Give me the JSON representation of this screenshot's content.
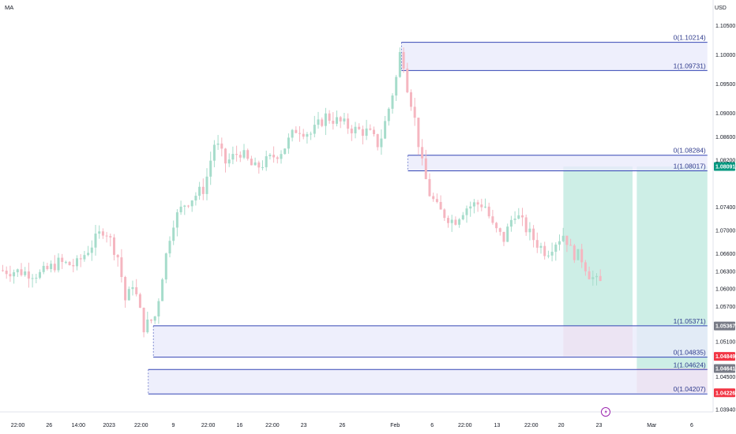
{
  "indicator_label": "MA",
  "chart_data": {
    "type": "candlestick",
    "currency": "USD",
    "ylim": [
      1.0394,
      1.1068
    ],
    "y_ticks": [
      {
        "value": 1.105,
        "label": "1.10500"
      },
      {
        "value": 1.1,
        "label": "1.10000"
      },
      {
        "value": 1.095,
        "label": "1.09500"
      },
      {
        "value": 1.09,
        "label": "1.09000"
      },
      {
        "value": 1.086,
        "label": "1.08600"
      },
      {
        "value": 1.082,
        "label": "1.08200"
      },
      {
        "value": 1.074,
        "label": "1.07400"
      },
      {
        "value": 1.07,
        "label": "1.07000"
      },
      {
        "value": 1.066,
        "label": "1.06600"
      },
      {
        "value": 1.063,
        "label": "1.06300"
      },
      {
        "value": 1.06,
        "label": "1.06000"
      },
      {
        "value": 1.057,
        "label": "1.05700"
      },
      {
        "value": 1.051,
        "label": "1.05100"
      },
      {
        "value": 1.045,
        "label": "1.04500"
      },
      {
        "value": 1.0394,
        "label": "1.03940"
      }
    ],
    "x_ticks": [
      {
        "pos": 0.025,
        "label": "22:00"
      },
      {
        "pos": 0.069,
        "label": "26"
      },
      {
        "pos": 0.11,
        "label": "14:00"
      },
      {
        "pos": 0.153,
        "label": "2023"
      },
      {
        "pos": 0.198,
        "label": "22:00"
      },
      {
        "pos": 0.243,
        "label": "9"
      },
      {
        "pos": 0.292,
        "label": "22:00"
      },
      {
        "pos": 0.336,
        "label": "16"
      },
      {
        "pos": 0.382,
        "label": "22:00"
      },
      {
        "pos": 0.426,
        "label": "23"
      },
      {
        "pos": 0.48,
        "label": "26"
      },
      {
        "pos": 0.554,
        "label": "Feb"
      },
      {
        "pos": 0.606,
        "label": "6"
      },
      {
        "pos": 0.652,
        "label": "22:00"
      },
      {
        "pos": 0.697,
        "label": "13"
      },
      {
        "pos": 0.745,
        "label": "22:00"
      },
      {
        "pos": 0.787,
        "label": "20"
      },
      {
        "pos": 0.84,
        "label": "23"
      },
      {
        "pos": 0.914,
        "label": "Mar"
      },
      {
        "pos": 0.97,
        "label": "6"
      }
    ],
    "candle_anchors": [
      [
        0.0,
        1.0632
      ],
      [
        0.03,
        1.063
      ],
      [
        0.06,
        1.0625
      ],
      [
        0.085,
        1.0645
      ],
      [
        0.11,
        1.064
      ],
      [
        0.135,
        1.068
      ],
      [
        0.15,
        1.0705
      ],
      [
        0.17,
        1.0652
      ],
      [
        0.18,
        1.0575
      ],
      [
        0.19,
        1.0612
      ],
      [
        0.205,
        1.0535
      ],
      [
        0.215,
        1.0545
      ],
      [
        0.222,
        1.0555
      ],
      [
        0.232,
        1.063
      ],
      [
        0.245,
        1.0712
      ],
      [
        0.262,
        1.0745
      ],
      [
        0.29,
        1.0772
      ],
      [
        0.305,
        1.0853
      ],
      [
        0.32,
        1.0815
      ],
      [
        0.34,
        1.0835
      ],
      [
        0.36,
        1.0805
      ],
      [
        0.38,
        1.082
      ],
      [
        0.4,
        1.0838
      ],
      [
        0.42,
        1.0875
      ],
      [
        0.44,
        1.0865
      ],
      [
        0.46,
        1.0895
      ],
      [
        0.48,
        1.0885
      ],
      [
        0.5,
        1.0872
      ],
      [
        0.52,
        1.0868
      ],
      [
        0.535,
        1.0845
      ],
      [
        0.548,
        1.0905
      ],
      [
        0.56,
        1.0965
      ],
      [
        0.566,
        1.1015
      ],
      [
        0.575,
        1.0945
      ],
      [
        0.583,
        1.0905
      ],
      [
        0.595,
        1.0815
      ],
      [
        0.605,
        1.0765
      ],
      [
        0.618,
        1.0735
      ],
      [
        0.64,
        1.0715
      ],
      [
        0.655,
        1.0738
      ],
      [
        0.67,
        1.0745
      ],
      [
        0.683,
        1.0745
      ],
      [
        0.695,
        1.0705
      ],
      [
        0.71,
        1.0685
      ],
      [
        0.725,
        1.0732
      ],
      [
        0.74,
        1.0705
      ],
      [
        0.755,
        1.068
      ],
      [
        0.77,
        1.0662
      ],
      [
        0.78,
        1.0678
      ],
      [
        0.795,
        1.0695
      ],
      [
        0.805,
        1.0662
      ],
      [
        0.818,
        1.0655
      ],
      [
        0.83,
        1.0625
      ],
      [
        0.842,
        1.061
      ]
    ],
    "zones": [
      {
        "name": "upper-zone",
        "x_start": 0.563,
        "x_end": 0.992,
        "level_0": 1.10214,
        "level_1": 1.09731,
        "label_0": "0(1.10214)",
        "label_1": "1(1.09731)"
      },
      {
        "name": "middle-zone",
        "x_start": 0.572,
        "x_end": 0.992,
        "level_0": 1.08284,
        "level_1": 1.08017,
        "label_0": "0(1.08284)",
        "label_1": "1(1.08017)"
      },
      {
        "name": "lower-zone",
        "x_start": 0.215,
        "x_end": 0.992,
        "level_0": 1.04835,
        "level_1": 1.05371,
        "label_0": "0(1.04835)",
        "label_1": "1(1.05371)"
      },
      {
        "name": "bottom-zone",
        "x_start": 0.208,
        "x_end": 0.992,
        "level_0": 1.04207,
        "level_1": 1.04624,
        "label_0": "0(1.04207)",
        "label_1": "1(1.04624)"
      }
    ],
    "positions": [
      {
        "name": "long-position-1",
        "x_start": 0.79,
        "x_end": 0.887,
        "entry": 1.05367,
        "target": 1.08091,
        "stop": 1.04849
      },
      {
        "name": "long-position-2",
        "x_start": 0.893,
        "x_end": 0.992,
        "entry": 1.04641,
        "target": 1.08091,
        "stop": 1.04226
      }
    ],
    "price_tags": [
      {
        "value": 1.08091,
        "label": "1.08091",
        "color": "#089981"
      },
      {
        "value": 1.05367,
        "label": "1.05367",
        "color": "#787b86"
      },
      {
        "value": 1.04849,
        "label": "1.04849",
        "color": "#f23645"
      },
      {
        "value": 1.04641,
        "label": "1.04641",
        "color": "#787b86"
      },
      {
        "value": 1.04226,
        "label": "1.04226",
        "color": "#f23645"
      }
    ],
    "colors": {
      "up_candle": "#a6dccb",
      "down_candle": "#f5b6c0",
      "zone_fill": "#e8e9fb",
      "zone_border": "#3446b5",
      "profit_fill": "#cdeee6",
      "loss_fill": "#f8d3d9"
    }
  }
}
